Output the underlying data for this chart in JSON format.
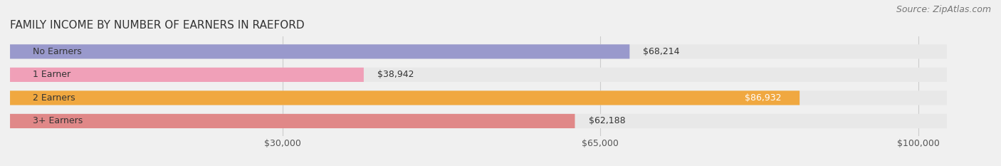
{
  "title": "FAMILY INCOME BY NUMBER OF EARNERS IN RAEFORD",
  "source": "Source: ZipAtlas.com",
  "categories": [
    "No Earners",
    "1 Earner",
    "2 Earners",
    "3+ Earners"
  ],
  "values": [
    68214,
    38942,
    86932,
    62188
  ],
  "bar_colors": [
    "#9999cc",
    "#f0a0b8",
    "#f0a840",
    "#e08888"
  ],
  "label_colors": [
    "#333333",
    "#333333",
    "#ffffff",
    "#333333"
  ],
  "x_ticks": [
    30000,
    65000,
    100000
  ],
  "x_tick_labels": [
    "$30,000",
    "$65,000",
    "$100,000"
  ],
  "xlim": [
    0,
    108000
  ],
  "background_color": "#f0f0f0",
  "bar_background": "#e8e8e8",
  "title_fontsize": 11,
  "source_fontsize": 9,
  "label_fontsize": 9,
  "category_fontsize": 9
}
